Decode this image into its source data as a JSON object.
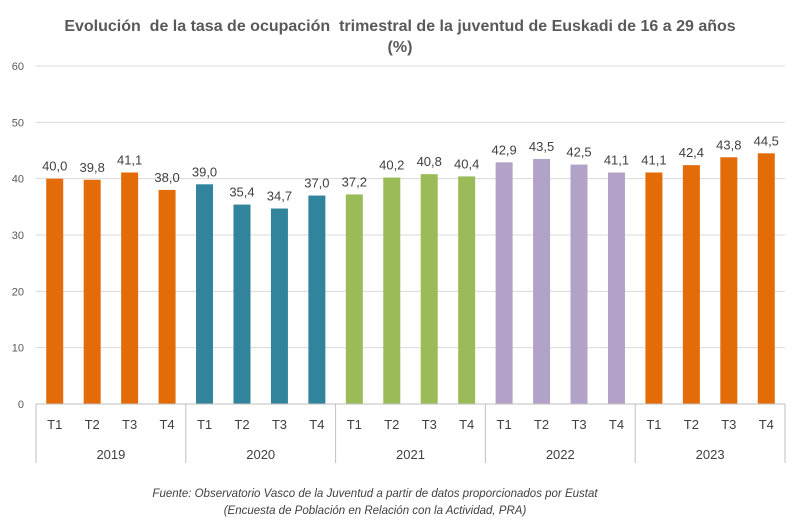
{
  "chart_data": {
    "type": "bar",
    "title_line1": "Evolución  de la tasa de ocupación  trimestral de la juventud de Euskadi de 16 a 29 años",
    "title_line2": "(%)",
    "ylim": [
      0,
      60
    ],
    "yticks": [
      "0",
      "10",
      "20",
      "30",
      "40",
      "50",
      "60"
    ],
    "grid": true,
    "groups": [
      {
        "year": "2019",
        "color": "#E36C09",
        "quarters": [
          "T1",
          "T2",
          "T3",
          "T4"
        ],
        "values": [
          40.0,
          39.8,
          41.1,
          38.0
        ],
        "labels": [
          "40,0",
          "39,8",
          "41,1",
          "38,0"
        ]
      },
      {
        "year": "2020",
        "color": "#31849B",
        "quarters": [
          "T1",
          "T2",
          "T3",
          "T4"
        ],
        "values": [
          39.0,
          35.4,
          34.7,
          37.0
        ],
        "labels": [
          "39,0",
          "35,4",
          "34,7",
          "37,0"
        ]
      },
      {
        "year": "2021",
        "color": "#9BBB59",
        "quarters": [
          "T1",
          "T2",
          "T3",
          "T4"
        ],
        "values": [
          37.2,
          40.2,
          40.8,
          40.4
        ],
        "labels": [
          "37,2",
          "40,2",
          "40,8",
          "40,4"
        ]
      },
      {
        "year": "2022",
        "color": "#B3A2C7",
        "quarters": [
          "T1",
          "T2",
          "T3",
          "T4"
        ],
        "values": [
          42.9,
          43.5,
          42.5,
          41.1
        ],
        "labels": [
          "42,9",
          "43,5",
          "42,5",
          "41,1"
        ]
      },
      {
        "year": "2023",
        "color": "#E36C09",
        "quarters": [
          "T1",
          "T2",
          "T3",
          "T4"
        ],
        "values": [
          41.1,
          42.4,
          43.8,
          44.5
        ],
        "labels": [
          "41,1",
          "42,4",
          "43,8",
          "44,5"
        ]
      }
    ]
  },
  "source": {
    "line1": "Fuente: Observatorio Vasco de la Juventud a partir de datos proporcionados por Eustat",
    "line2": "(Encuesta de Población en Relación con la Actividad, PRA)"
  }
}
